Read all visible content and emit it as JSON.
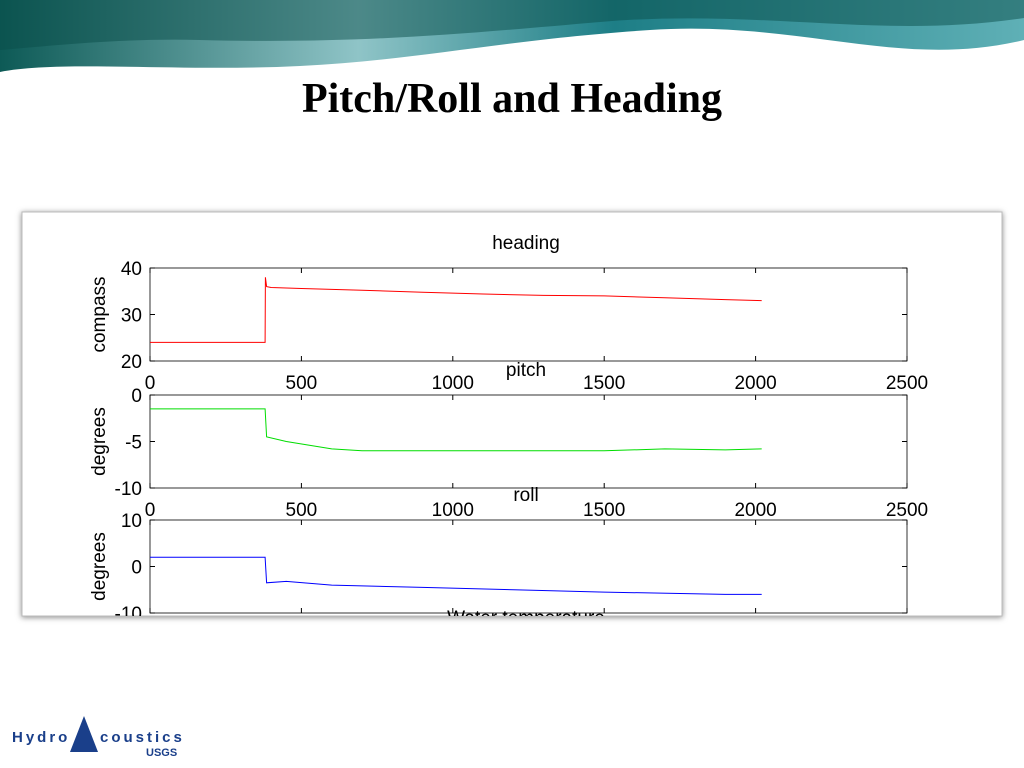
{
  "title": "Pitch/Roll and  Heading",
  "partial_text": "Water temperature",
  "logo": {
    "left": "Hydro",
    "right": "coustics",
    "sub": "USGS"
  },
  "chart_data": [
    {
      "type": "line",
      "title": "heading",
      "y_label": "compass",
      "xlim": [
        0,
        2500
      ],
      "xticks": [
        0,
        500,
        1000,
        1500,
        2000,
        2500
      ],
      "show_xtick_labels": true,
      "ylim": [
        20,
        40
      ],
      "yticks": [
        20,
        30,
        40
      ],
      "series": [
        {
          "name": "heading",
          "color": "#ff0000",
          "x": [
            0,
            380,
            381,
            385,
            400,
            500,
            700,
            900,
            1100,
            1300,
            1500,
            1700,
            1900,
            2020
          ],
          "values": [
            24,
            24,
            38,
            36,
            35.8,
            35.6,
            35.2,
            34.8,
            34.4,
            34.1,
            34,
            33.6,
            33.2,
            33
          ]
        }
      ]
    },
    {
      "type": "line",
      "title": "pitch",
      "y_label": "degrees",
      "xlim": [
        0,
        2500
      ],
      "xticks": [
        0,
        500,
        1000,
        1500,
        2000,
        2500
      ],
      "show_xtick_labels": true,
      "ylim": [
        -10,
        0
      ],
      "yticks": [
        -10,
        -5,
        0
      ],
      "series": [
        {
          "name": "pitch",
          "color": "#00dd00",
          "x": [
            0,
            380,
            385,
            450,
            600,
            700,
            1000,
            1500,
            1700,
            1900,
            2020
          ],
          "values": [
            -1.5,
            -1.5,
            -4.5,
            -5,
            -5.8,
            -6,
            -6,
            -6,
            -5.8,
            -5.9,
            -5.8
          ]
        }
      ]
    },
    {
      "type": "line",
      "title": "roll",
      "y_label": "degrees",
      "xlim": [
        0,
        2500
      ],
      "xticks": [
        0,
        500,
        1000,
        1500,
        2000,
        2500
      ],
      "show_xtick_labels": false,
      "ylim": [
        -10,
        10
      ],
      "yticks": [
        -10,
        0,
        10
      ],
      "series": [
        {
          "name": "roll",
          "color": "#0000ff",
          "x": [
            0,
            380,
            385,
            450,
            600,
            900,
            1200,
            1500,
            1900,
            2020
          ],
          "values": [
            2,
            2,
            -3.5,
            -3.2,
            -4,
            -4.5,
            -5,
            -5.5,
            -6,
            -6
          ]
        }
      ]
    }
  ]
}
